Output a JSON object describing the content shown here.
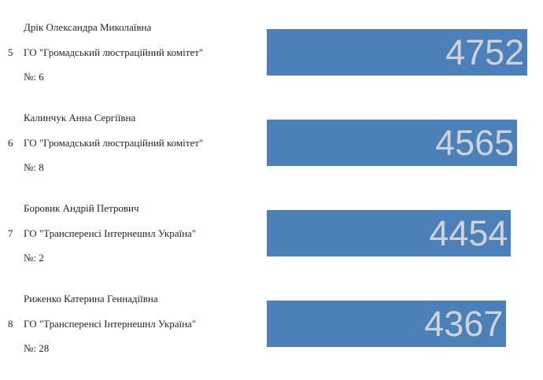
{
  "candidates": [
    {
      "rank": 5,
      "name": "Дрік Олександра Миколаївна",
      "organization": "ГО \"Громадський люстраційний комітет\"",
      "number": "№: 6",
      "votes": 4752
    },
    {
      "rank": 6,
      "name": "Калинчук Анна Сергіївна",
      "organization": "ГО \"Громадський люстраційний комітет\"",
      "number": "№: 8",
      "votes": 4565
    },
    {
      "rank": 7,
      "name": "Боровик Андрій Петрович",
      "organization": "ГО \"Трансперенсі Інтернешнл Україна\"",
      "number": "№: 2",
      "votes": 4454
    },
    {
      "rank": 8,
      "name": "Риженко Катерина Геннадіївна",
      "organization": "ГО \"Трансперенсі Інтернешнл Україна\"",
      "number": "№: 28",
      "votes": 4367
    }
  ]
}
